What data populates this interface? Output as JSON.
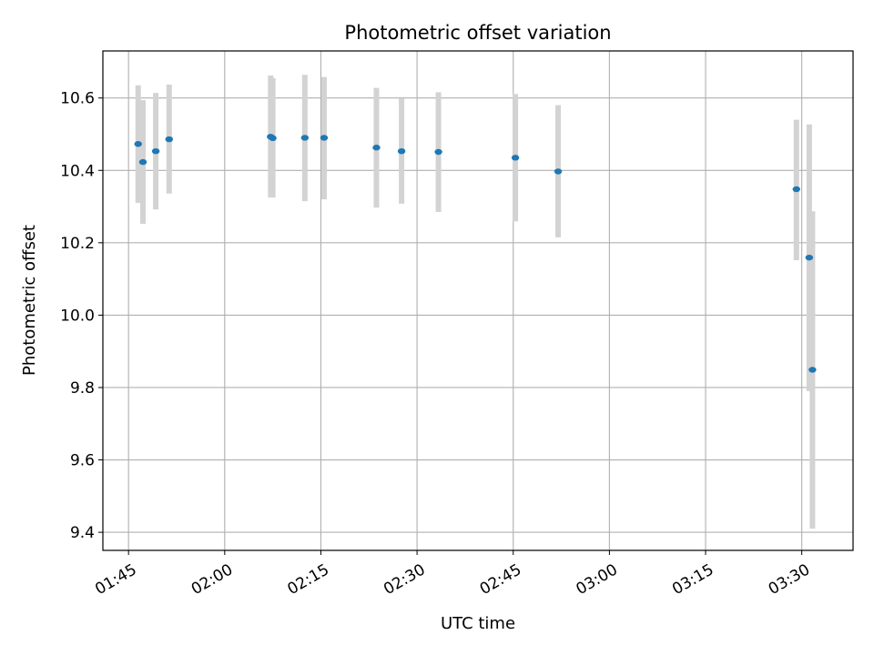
{
  "chart_data": {
    "type": "scatter",
    "title": "Photometric offset variation",
    "xlabel": "UTC time",
    "ylabel": "Photometric offset",
    "x_ticks": [
      "01:45",
      "02:00",
      "02:15",
      "02:30",
      "02:45",
      "03:00",
      "03:15",
      "03:30"
    ],
    "y_ticks": [
      "9.4",
      "9.6",
      "9.8",
      "10.0",
      "10.2",
      "10.4",
      "10.6"
    ],
    "xlim": [
      "01:41",
      "03:38"
    ],
    "ylim": [
      9.35,
      10.73
    ],
    "grid": true,
    "colors": {
      "point": "#1f77b4",
      "errorbar": "#d3d3d3",
      "grid": "#b0b0b0"
    },
    "points": [
      {
        "x": "01:46:30",
        "y": 10.473,
        "low": 10.31,
        "high": 10.635
      },
      {
        "x": "01:47:15",
        "y": 10.423,
        "low": 10.252,
        "high": 10.594
      },
      {
        "x": "01:49:15",
        "y": 10.453,
        "low": 10.292,
        "high": 10.614
      },
      {
        "x": "01:51:20",
        "y": 10.486,
        "low": 10.336,
        "high": 10.637
      },
      {
        "x": "02:07:10",
        "y": 10.493,
        "low": 10.325,
        "high": 10.662
      },
      {
        "x": "02:07:30",
        "y": 10.489,
        "low": 10.325,
        "high": 10.655
      },
      {
        "x": "02:12:30",
        "y": 10.49,
        "low": 10.315,
        "high": 10.664
      },
      {
        "x": "02:15:30",
        "y": 10.49,
        "low": 10.32,
        "high": 10.658
      },
      {
        "x": "02:23:40",
        "y": 10.463,
        "low": 10.297,
        "high": 10.628
      },
      {
        "x": "02:27:35",
        "y": 10.453,
        "low": 10.308,
        "high": 10.598
      },
      {
        "x": "02:33:20",
        "y": 10.451,
        "low": 10.285,
        "high": 10.616
      },
      {
        "x": "02:45:20",
        "y": 10.435,
        "low": 10.259,
        "high": 10.611
      },
      {
        "x": "02:52:00",
        "y": 10.397,
        "low": 10.215,
        "high": 10.58
      },
      {
        "x": "03:29:10",
        "y": 10.348,
        "low": 10.152,
        "high": 10.54
      },
      {
        "x": "03:31:10",
        "y": 10.159,
        "low": 9.79,
        "high": 10.527
      },
      {
        "x": "03:31:40",
        "y": 9.849,
        "low": 9.41,
        "high": 10.287
      }
    ]
  }
}
